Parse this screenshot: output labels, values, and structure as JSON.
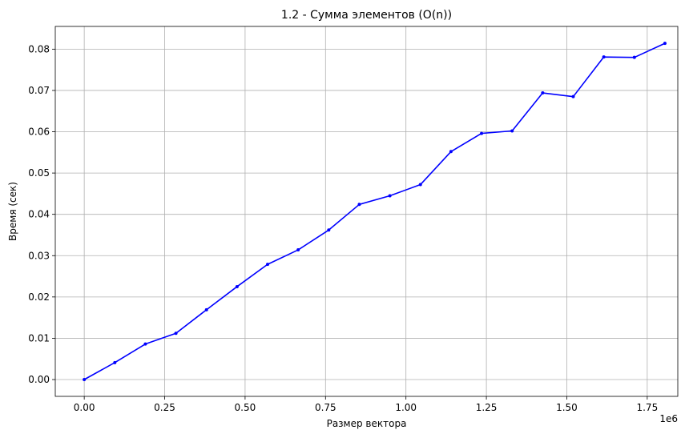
{
  "chart_data": {
    "type": "line",
    "title": "1.2 - Сумма элементов (O(n))",
    "xlabel": "Размер вектора",
    "ylabel": "Время (сек)",
    "x_offset_label": "1e6",
    "xlim": [
      -0.09,
      1.845
    ],
    "ylim": [
      -0.00407,
      0.0855
    ],
    "x_ticks": [
      0.0,
      0.25,
      0.5,
      0.75,
      1.0,
      1.25,
      1.5,
      1.75
    ],
    "x_tick_labels": [
      "0.00",
      "0.25",
      "0.50",
      "0.75",
      "1.00",
      "1.25",
      "1.50",
      "1.75"
    ],
    "y_ticks": [
      0.0,
      0.01,
      0.02,
      0.03,
      0.04,
      0.05,
      0.06,
      0.07,
      0.08
    ],
    "y_tick_labels": [
      "0.00",
      "0.01",
      "0.02",
      "0.03",
      "0.04",
      "0.05",
      "0.06",
      "0.07",
      "0.08"
    ],
    "grid": true,
    "series": [
      {
        "color": "#0000ff",
        "x": [
          0.0,
          0.095,
          0.19,
          0.285,
          0.38,
          0.475,
          0.57,
          0.665,
          0.76,
          0.855,
          0.95,
          1.045,
          1.14,
          1.235,
          1.33,
          1.425,
          1.52,
          1.615,
          1.71,
          1.805
        ],
        "y": [
          0.0,
          0.0041,
          0.0086,
          0.0112,
          0.0169,
          0.0225,
          0.0279,
          0.0314,
          0.0362,
          0.0424,
          0.0445,
          0.0472,
          0.0552,
          0.0596,
          0.0602,
          0.0694,
          0.0685,
          0.0781,
          0.078,
          0.0814
        ]
      }
    ]
  }
}
